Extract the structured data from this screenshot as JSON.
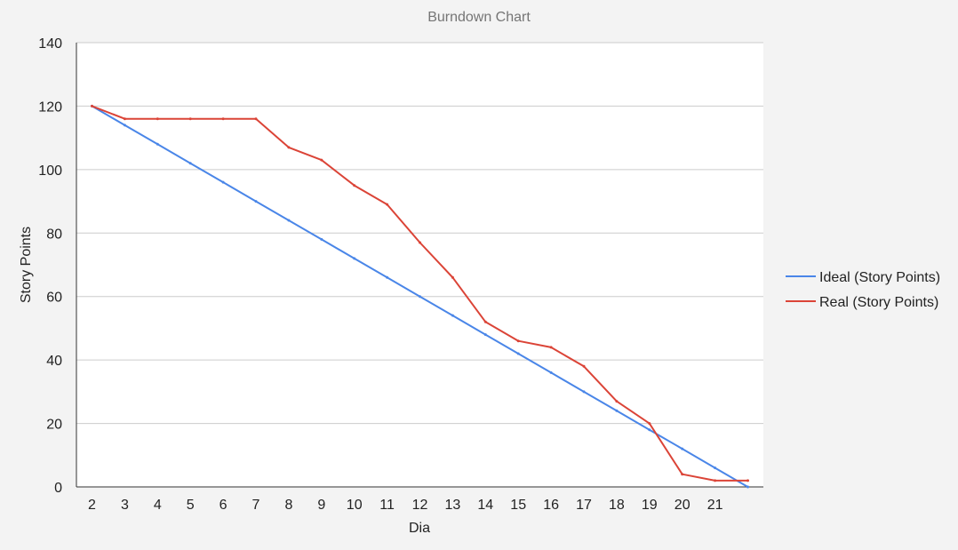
{
  "chart_data": {
    "type": "line",
    "title": "Burndown Chart",
    "xlabel": "Dia",
    "ylabel": "Story Points",
    "x": [
      2,
      3,
      4,
      5,
      6,
      7,
      8,
      9,
      10,
      11,
      12,
      13,
      14,
      15,
      16,
      17,
      18,
      19,
      20,
      21,
      22
    ],
    "x_tick_labels": [
      "2",
      "3",
      "4",
      "5",
      "6",
      "7",
      "8",
      "9",
      "10",
      "11",
      "12",
      "13",
      "14",
      "15",
      "16",
      "17",
      "18",
      "19",
      "20",
      "21",
      ""
    ],
    "ylim": [
      0,
      140
    ],
    "y_ticks": [
      0,
      20,
      40,
      60,
      80,
      100,
      120,
      140
    ],
    "grid": true,
    "legend_position": "right",
    "series": [
      {
        "name": "Ideal (Story Points)",
        "color": "#4a86e8",
        "values": [
          120,
          114,
          108,
          102,
          96,
          90,
          84,
          78,
          72,
          66,
          60,
          54,
          48,
          42,
          36,
          30,
          24,
          18,
          12,
          6,
          0
        ]
      },
      {
        "name": "Real (Story Points)",
        "color": "#db4437",
        "values": [
          120,
          116,
          116,
          116,
          116,
          116,
          107,
          103,
          95,
          89,
          77,
          66,
          52,
          46,
          44,
          38,
          27,
          20,
          4,
          2,
          2
        ]
      }
    ]
  }
}
